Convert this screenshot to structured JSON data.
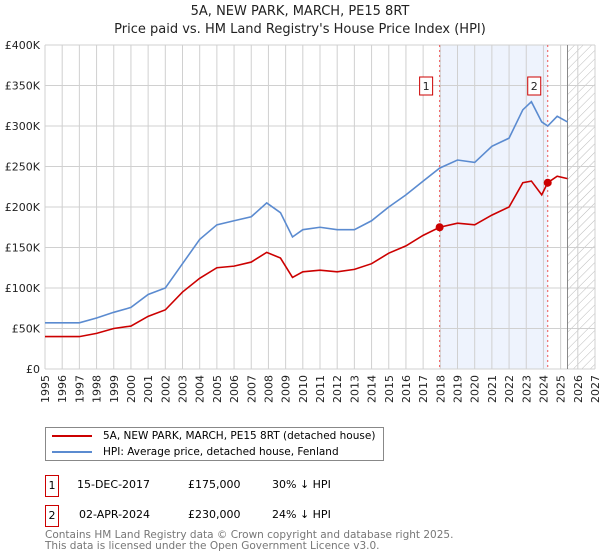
{
  "chart_data": {
    "type": "line",
    "title": "5A, NEW PARK, MARCH, PE15 8RT",
    "subtitle": "Price paid vs. HM Land Registry's House Price Index (HPI)",
    "xlim": [
      1995,
      2027
    ],
    "ylim": [
      0,
      400000
    ],
    "x_ticks": [
      "1995",
      "1996",
      "1997",
      "1998",
      "1999",
      "2000",
      "2001",
      "2002",
      "2003",
      "2004",
      "2005",
      "2006",
      "2007",
      "2008",
      "2009",
      "2010",
      "2011",
      "2012",
      "2013",
      "2014",
      "2015",
      "2016",
      "2017",
      "2018",
      "2019",
      "2020",
      "2021",
      "2022",
      "2023",
      "2024",
      "2025",
      "2026",
      "2027"
    ],
    "y_ticks": [
      {
        "v": 0,
        "label": "£0"
      },
      {
        "v": 50000,
        "label": "£50K"
      },
      {
        "v": 100000,
        "label": "£100K"
      },
      {
        "v": 150000,
        "label": "£150K"
      },
      {
        "v": 200000,
        "label": "£200K"
      },
      {
        "v": 250000,
        "label": "£250K"
      },
      {
        "v": 300000,
        "label": "£300K"
      },
      {
        "v": 350000,
        "label": "£350K"
      },
      {
        "v": 400000,
        "label": "£400K"
      }
    ],
    "grid": true,
    "shaded_range": [
      2017.96,
      2024.25
    ],
    "forecast_hatch_from": 2025.4,
    "series": [
      {
        "name": "5A, NEW PARK, MARCH, PE15 8RT (detached house)",
        "color": "#cc0000",
        "x": [
          1995,
          1996,
          1997,
          1998,
          1999,
          2000,
          2001,
          2002,
          2003,
          2004,
          2005,
          2006,
          2007,
          2007.9,
          2008.7,
          2009.4,
          2010,
          2011,
          2012,
          2013,
          2014,
          2015,
          2016,
          2017,
          2017.96,
          2019,
          2020,
          2021,
          2022,
          2022.8,
          2023.3,
          2023.9,
          2024.25,
          2024.8,
          2025.4
        ],
        "y": [
          40000,
          40000,
          40000,
          44000,
          50000,
          53000,
          65000,
          73000,
          95000,
          112000,
          125000,
          127000,
          132000,
          144000,
          137000,
          113000,
          120000,
          122000,
          120000,
          123000,
          130000,
          143000,
          152000,
          165000,
          175000,
          180000,
          178000,
          190000,
          200000,
          230000,
          232000,
          215000,
          230000,
          238000,
          235000
        ]
      },
      {
        "name": "HPI: Average price, detached house, Fenland",
        "color": "#5b8bd0",
        "x": [
          1995,
          1996,
          1997,
          1998,
          1999,
          2000,
          2001,
          2002,
          2003,
          2004,
          2005,
          2006,
          2007,
          2007.9,
          2008.7,
          2009.4,
          2010,
          2011,
          2012,
          2013,
          2014,
          2015,
          2016,
          2017,
          2017.96,
          2019,
          2020,
          2021,
          2022,
          2022.8,
          2023.3,
          2023.9,
          2024.25,
          2024.8,
          2025.4
        ],
        "y": [
          57000,
          57000,
          57000,
          63000,
          70000,
          76000,
          92000,
          100000,
          130000,
          160000,
          178000,
          183000,
          188000,
          205000,
          193000,
          163000,
          172000,
          175000,
          172000,
          172000,
          183000,
          200000,
          215000,
          232000,
          248000,
          258000,
          255000,
          275000,
          285000,
          320000,
          330000,
          305000,
          300000,
          312000,
          305000
        ]
      }
    ],
    "sales": [
      {
        "id": "1",
        "x": 2017.96,
        "y": 175000,
        "date": "15-DEC-2017",
        "price": "£175,000",
        "diff": "30% ↓ HPI"
      },
      {
        "id": "2",
        "x": 2024.25,
        "y": 230000,
        "date": "02-APR-2024",
        "price": "£230,000",
        "diff": "24% ↓ HPI"
      }
    ]
  },
  "footer": {
    "line1": "Contains HM Land Registry data © Crown copyright and database right 2025.",
    "line2": "This data is licensed under the Open Government Licence v3.0."
  }
}
